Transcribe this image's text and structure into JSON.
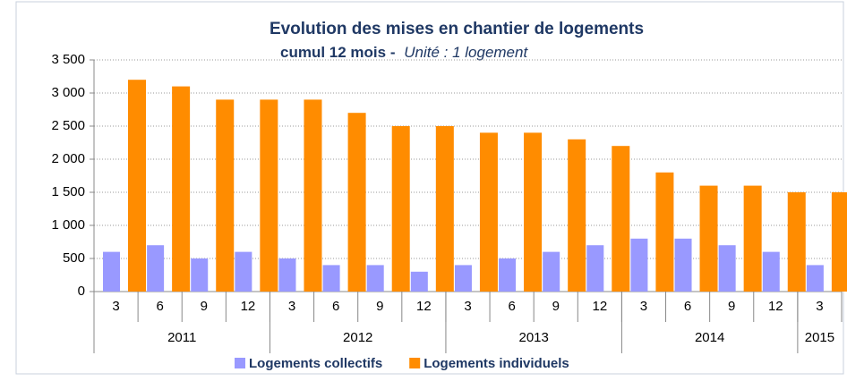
{
  "chart_data": {
    "type": "bar",
    "title": "Evolution des mises en chantier de logements",
    "subtitle": "cumul 12 mois -",
    "unit": "Unité : 1 logement",
    "categories": [
      "3",
      "6",
      "9",
      "12",
      "3",
      "6",
      "9",
      "12",
      "3",
      "6",
      "9",
      "12",
      "3",
      "6",
      "9",
      "12",
      "3"
    ],
    "groups": [
      {
        "label": "2011",
        "span": 4
      },
      {
        "label": "2012",
        "span": 4
      },
      {
        "label": "2013",
        "span": 4
      },
      {
        "label": "2014",
        "span": 4
      },
      {
        "label": "2015",
        "span": 1
      }
    ],
    "series": [
      {
        "name": "Logements collectifs",
        "color": "#9999ff",
        "values": [
          600,
          700,
          500,
          600,
          500,
          400,
          400,
          300,
          400,
          500,
          600,
          700,
          800,
          800,
          700,
          600,
          400
        ]
      },
      {
        "name": "Logements individuels",
        "color": "#ff8c00",
        "values": [
          3200,
          3100,
          2900,
          2900,
          2900,
          2700,
          2500,
          2500,
          2400,
          2400,
          2300,
          2200,
          1800,
          1600,
          1600,
          1500,
          1500
        ]
      }
    ],
    "ylim": [
      0,
      3500
    ],
    "yticks": [
      0,
      500,
      {
        "value": 1000,
        "label": "1 000"
      },
      {
        "value": 1500,
        "label": "1 500"
      },
      {
        "value": 2000,
        "label": "2 000"
      },
      {
        "value": 2500,
        "label": "2 500"
      },
      {
        "value": 3000,
        "label": "3 000"
      },
      {
        "value": 3500,
        "label": "3 500"
      }
    ],
    "grid": true,
    "legend": "bottom"
  }
}
